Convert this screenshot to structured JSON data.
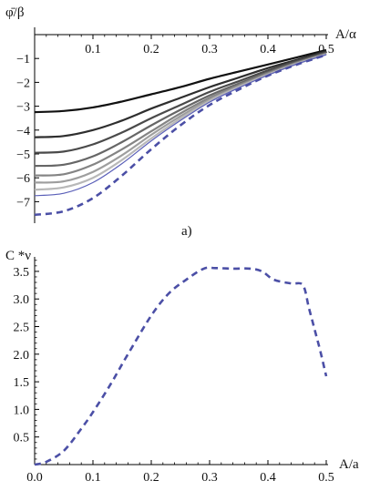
{
  "chart_data": [
    {
      "type": "line",
      "caption": "a)",
      "ylabel": "φ̄/β",
      "xlabel": "A/α",
      "xlim": [
        0,
        0.5
      ],
      "ylim": [
        -7.8,
        0
      ],
      "x_ticks": [
        "0.1",
        "0.2",
        "0.3",
        "0.4",
        "0.5"
      ],
      "y_ticks": [
        "−1",
        "−2",
        "−3",
        "−4",
        "−5",
        "−6",
        "−7"
      ],
      "colors": {
        "solid_series": [
          "#111111",
          "#2e2e2e",
          "#4a4a4a",
          "#666666",
          "#848484",
          "#9e9e9e",
          "#b8b8b8"
        ],
        "blue_series": "#5a5fb8",
        "dashed_series": "#4b4fa6"
      },
      "x": [
        0,
        0.05,
        0.1,
        0.15,
        0.2,
        0.25,
        0.3,
        0.35,
        0.4,
        0.45,
        0.5
      ],
      "series": [
        {
          "style": "solid",
          "values": [
            -3.25,
            -3.2,
            -3.05,
            -2.8,
            -2.5,
            -2.2,
            -1.85,
            -1.55,
            -1.25,
            -0.95,
            -0.65
          ]
        },
        {
          "style": "solid",
          "values": [
            -4.3,
            -4.25,
            -4.0,
            -3.6,
            -3.1,
            -2.65,
            -2.2,
            -1.8,
            -1.4,
            -1.05,
            -0.7
          ]
        },
        {
          "style": "solid",
          "values": [
            -4.95,
            -4.9,
            -4.6,
            -4.1,
            -3.5,
            -2.95,
            -2.4,
            -1.95,
            -1.5,
            -1.1,
            -0.75
          ]
        },
        {
          "style": "solid",
          "values": [
            -5.5,
            -5.45,
            -5.1,
            -4.5,
            -3.8,
            -3.15,
            -2.55,
            -2.05,
            -1.58,
            -1.15,
            -0.78
          ]
        },
        {
          "style": "solid",
          "values": [
            -5.9,
            -5.85,
            -5.45,
            -4.8,
            -4.05,
            -3.3,
            -2.65,
            -2.12,
            -1.62,
            -1.18,
            -0.8
          ]
        },
        {
          "style": "solid",
          "values": [
            -6.2,
            -6.15,
            -5.75,
            -5.05,
            -4.2,
            -3.42,
            -2.72,
            -2.17,
            -1.66,
            -1.2,
            -0.82
          ]
        },
        {
          "style": "solid",
          "values": [
            -6.5,
            -6.4,
            -6.0,
            -5.25,
            -4.35,
            -3.52,
            -2.78,
            -2.2,
            -1.68,
            -1.22,
            -0.83
          ]
        },
        {
          "style": "solid-blue",
          "values": [
            -6.75,
            -6.65,
            -6.2,
            -5.4,
            -4.45,
            -3.6,
            -2.83,
            -2.23,
            -1.7,
            -1.23,
            -0.84
          ]
        },
        {
          "style": "dashed",
          "values": [
            -7.55,
            -7.4,
            -6.85,
            -5.9,
            -4.8,
            -3.8,
            -2.95,
            -2.3,
            -1.72,
            -1.25,
            -0.85
          ]
        }
      ]
    },
    {
      "type": "line",
      "ylabel": "C *ν",
      "xlabel": "A/a",
      "xlim": [
        0,
        0.5
      ],
      "ylim": [
        0,
        3.75
      ],
      "x_ticks": [
        "0.0",
        "0.1",
        "0.2",
        "0.3",
        "0.4",
        "0.5"
      ],
      "y_ticks": [
        "0.5",
        "1.0",
        "1.5",
        "2.0",
        "2.5",
        "3.0",
        "3.5"
      ],
      "colors": {
        "dashed_series": "#4b4fa6"
      },
      "x": [
        0.0,
        0.02,
        0.05,
        0.08,
        0.1,
        0.13,
        0.16,
        0.2,
        0.23,
        0.26,
        0.29,
        0.31,
        0.34,
        0.37,
        0.39,
        0.41,
        0.44,
        0.46,
        0.47,
        0.48,
        0.49,
        0.5
      ],
      "series": [
        {
          "style": "dashed",
          "values": [
            0.0,
            0.05,
            0.25,
            0.65,
            0.95,
            1.45,
            2.0,
            2.7,
            3.1,
            3.35,
            3.55,
            3.56,
            3.55,
            3.55,
            3.5,
            3.35,
            3.28,
            3.25,
            2.85,
            2.45,
            2.05,
            1.6
          ]
        }
      ]
    }
  ]
}
